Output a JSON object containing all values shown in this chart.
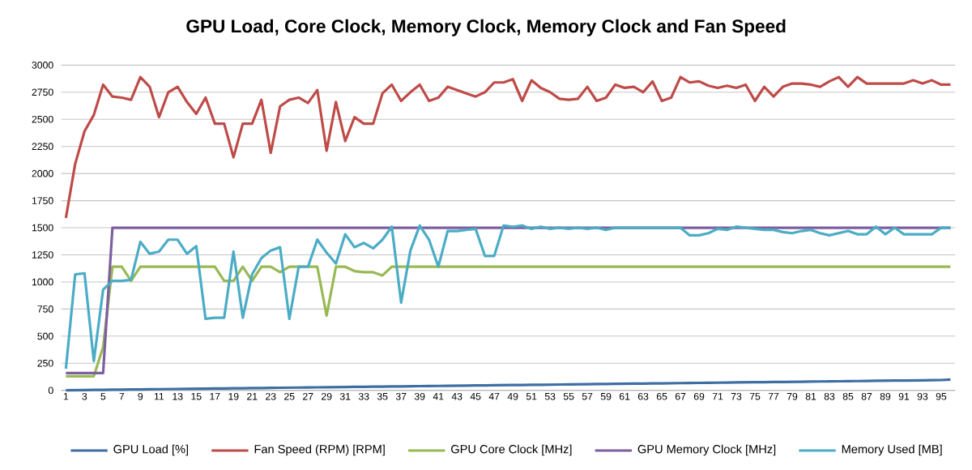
{
  "chart_data": {
    "type": "line",
    "title": "GPU Load, Core Clock, Memory Clock, Memory Clock and Fan Speed",
    "categories": [
      "1",
      null,
      "3",
      null,
      "5",
      null,
      "7",
      null,
      "9",
      null,
      "11",
      null,
      "13",
      null,
      "15",
      null,
      "17",
      null,
      "19",
      null,
      "21",
      null,
      "23",
      null,
      "25",
      null,
      "27",
      null,
      "29",
      null,
      "31",
      null,
      "33",
      null,
      "35",
      null,
      "37",
      null,
      "39",
      null,
      "41",
      null,
      "43",
      null,
      "45",
      null,
      "47",
      null,
      "49",
      null,
      "51",
      null,
      "53",
      null,
      "55",
      null,
      "57",
      null,
      "59",
      null,
      "61",
      null,
      "63",
      null,
      "65",
      null,
      "67",
      null,
      "69",
      null,
      "71",
      null,
      "73",
      null,
      "75",
      null,
      "77",
      null,
      "79",
      null,
      "81",
      null,
      "83",
      null,
      "85",
      null,
      "87",
      null,
      "89",
      null,
      "91",
      null,
      "93",
      null,
      "95",
      null
    ],
    "series": [
      {
        "name": "GPU Load [%]",
        "color": "#3e6fa4",
        "values": [
          1,
          2,
          3,
          4,
          5,
          6,
          7,
          8,
          9,
          10,
          11,
          12,
          13,
          14,
          15,
          16,
          17,
          18,
          19,
          20,
          21,
          22,
          23,
          24,
          25,
          26,
          27,
          28,
          29,
          30,
          31,
          32,
          33,
          34,
          35,
          36,
          37,
          38,
          39,
          40,
          41,
          42,
          43,
          44,
          45,
          46,
          47,
          48,
          49,
          50,
          51,
          52,
          53,
          54,
          55,
          56,
          57,
          58,
          59,
          60,
          61,
          62,
          63,
          64,
          65,
          66,
          67,
          68,
          69,
          70,
          71,
          72,
          73,
          74,
          75,
          76,
          77,
          78,
          79,
          80,
          81,
          82,
          83,
          84,
          85,
          86,
          87,
          88,
          89,
          90,
          91,
          92,
          93,
          94,
          95,
          100
        ]
      },
      {
        "name": "Fan Speed (RPM) [RPM]",
        "color": "#be4b48",
        "values": [
          1590,
          2090,
          2390,
          2540,
          2820,
          2710,
          2700,
          2680,
          2890,
          2800,
          2520,
          2750,
          2800,
          2660,
          2550,
          2700,
          2460,
          2460,
          2150,
          2460,
          2460,
          2680,
          2190,
          2620,
          2680,
          2700,
          2650,
          2770,
          2210,
          2660,
          2300,
          2520,
          2460,
          2460,
          2740,
          2820,
          2670,
          2750,
          2820,
          2670,
          2700,
          2800,
          2770,
          2740,
          2710,
          2750,
          2840,
          2840,
          2870,
          2670,
          2860,
          2790,
          2750,
          2690,
          2680,
          2690,
          2800,
          2670,
          2700,
          2820,
          2790,
          2800,
          2750,
          2850,
          2670,
          2700,
          2890,
          2840,
          2850,
          2810,
          2790,
          2810,
          2790,
          2820,
          2670,
          2800,
          2710,
          2800,
          2830,
          2830,
          2820,
          2800,
          2850,
          2890,
          2800,
          2890,
          2830,
          2830,
          2830,
          2830,
          2830,
          2860,
          2830,
          2860,
          2820,
          2820
        ]
      },
      {
        "name": "GPU Core Clock [MHz]",
        "color": "#98b954",
        "values": [
          130,
          130,
          130,
          130,
          400,
          1140,
          1140,
          1010,
          1140,
          1140,
          1140,
          1140,
          1140,
          1140,
          1140,
          1140,
          1140,
          1010,
          1010,
          1140,
          1010,
          1140,
          1140,
          1090,
          1140,
          1140,
          1140,
          1140,
          690,
          1140,
          1140,
          1100,
          1090,
          1090,
          1060,
          1140,
          1140,
          1140,
          1140,
          1140,
          1140,
          1140,
          1140,
          1140,
          1140,
          1140,
          1140,
          1140,
          1140,
          1140,
          1140,
          1140,
          1140,
          1140,
          1140,
          1140,
          1140,
          1140,
          1140,
          1140,
          1140,
          1140,
          1140,
          1140,
          1140,
          1140,
          1140,
          1140,
          1140,
          1140,
          1140,
          1140,
          1140,
          1140,
          1140,
          1140,
          1140,
          1140,
          1140,
          1140,
          1140,
          1140,
          1140,
          1140,
          1140,
          1140,
          1140,
          1140,
          1140,
          1140,
          1140,
          1140,
          1140,
          1140,
          1140,
          1140
        ]
      },
      {
        "name": "GPU Memory Clock [MHz]",
        "color": "#7d5fa0",
        "values": [
          160,
          160,
          160,
          160,
          160,
          1500,
          1500,
          1500,
          1500,
          1500,
          1500,
          1500,
          1500,
          1500,
          1500,
          1500,
          1500,
          1500,
          1500,
          1500,
          1500,
          1500,
          1500,
          1500,
          1500,
          1500,
          1500,
          1500,
          1500,
          1500,
          1500,
          1500,
          1500,
          1500,
          1500,
          1500,
          1500,
          1500,
          1500,
          1500,
          1500,
          1500,
          1500,
          1500,
          1500,
          1500,
          1500,
          1500,
          1500,
          1500,
          1500,
          1500,
          1500,
          1500,
          1500,
          1500,
          1500,
          1500,
          1500,
          1500,
          1500,
          1500,
          1500,
          1500,
          1500,
          1500,
          1500,
          1500,
          1500,
          1500,
          1500,
          1500,
          1500,
          1500,
          1500,
          1500,
          1500,
          1500,
          1500,
          1500,
          1500,
          1500,
          1500,
          1500,
          1500,
          1500,
          1500,
          1500,
          1500,
          1500,
          1500,
          1500,
          1500,
          1500,
          1500,
          1500
        ]
      },
      {
        "name": "Memory Used [MB]",
        "color": "#4bacc6",
        "values": [
          200,
          1070,
          1080,
          270,
          930,
          1010,
          1010,
          1020,
          1370,
          1260,
          1280,
          1390,
          1390,
          1260,
          1330,
          660,
          670,
          670,
          1280,
          670,
          1070,
          1220,
          1290,
          1320,
          660,
          1140,
          1140,
          1390,
          1270,
          1170,
          1440,
          1320,
          1360,
          1310,
          1390,
          1510,
          810,
          1290,
          1520,
          1390,
          1140,
          1470,
          1470,
          1480,
          1490,
          1240,
          1240,
          1520,
          1510,
          1520,
          1490,
          1510,
          1490,
          1500,
          1490,
          1500,
          1490,
          1500,
          1480,
          1500,
          1500,
          1500,
          1500,
          1500,
          1500,
          1500,
          1500,
          1430,
          1430,
          1450,
          1490,
          1480,
          1510,
          1500,
          1490,
          1480,
          1480,
          1460,
          1450,
          1470,
          1480,
          1450,
          1430,
          1450,
          1470,
          1440,
          1440,
          1510,
          1440,
          1500,
          1440,
          1440,
          1440,
          1440,
          1500,
          1500
        ]
      }
    ],
    "ylim": [
      0,
      3000
    ],
    "yticks": [
      0,
      250,
      500,
      750,
      1000,
      1250,
      1500,
      1750,
      2000,
      2250,
      2500,
      2750,
      3000
    ],
    "grid": "y",
    "legend": "bottom",
    "marker": "none",
    "line_style": "solid"
  }
}
